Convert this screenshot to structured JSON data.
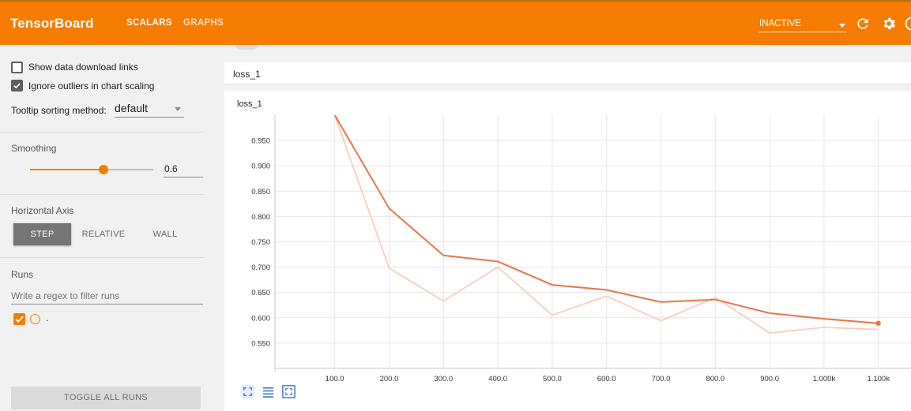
{
  "app": {
    "brand": "TensorBoard",
    "tabs": [
      {
        "label": "SCALARS",
        "active": true
      },
      {
        "label": "GRAPHS",
        "active": false
      }
    ],
    "status_select": "INACTIVE",
    "accent_color": "#f57c00",
    "icons": [
      "refresh-icon",
      "settings-icon",
      "help-icon"
    ]
  },
  "sidebar": {
    "show_download_links": {
      "label": "Show data download links",
      "checked": false
    },
    "ignore_outliers": {
      "label": "Ignore outliers in chart scaling",
      "checked": true
    },
    "tooltip_sorting": {
      "label": "Tooltip sorting method:",
      "value": "default"
    },
    "smoothing": {
      "label": "Smoothing",
      "value": "0.6",
      "level": 0.6
    },
    "horizontal_axis": {
      "label": "Horizontal Axis",
      "options": [
        {
          "label": "STEP",
          "active": true
        },
        {
          "label": "RELATIVE",
          "active": false
        },
        {
          "label": "WALL",
          "active": false
        }
      ]
    },
    "runs": {
      "label": "Runs",
      "filter_placeholder": "Write a regex to filter runs",
      "items": [
        {
          "name": ".",
          "checked": true,
          "color": "#f57c00"
        }
      ]
    },
    "toggle_all": "TOGGLE ALL RUNS"
  },
  "main": {
    "tag_group": "loss_1",
    "card_title": "loss_1",
    "chart_buttons": [
      "fit-domain-icon",
      "toggle-log-scale-icon",
      "expand-chart-icon"
    ]
  },
  "chart_data": {
    "type": "line",
    "title": "loss_1",
    "xlabel": "",
    "ylabel": "",
    "x_ticks": [
      "100.0",
      "200.0",
      "300.0",
      "400.0",
      "500.0",
      "600.0",
      "700.0",
      "800.0",
      "900.0",
      "1.000k",
      "1.100k"
    ],
    "y_ticks": [
      "0.550",
      "0.600",
      "0.650",
      "0.700",
      "0.750",
      "0.800",
      "0.850",
      "0.900",
      "0.950"
    ],
    "xlim": [
      -10,
      1160
    ],
    "ylim": [
      0.5,
      1.0
    ],
    "grid": true,
    "series": [
      {
        "kind": "smoothed",
        "color": "#e8754a",
        "x": [
          100,
          200,
          300,
          400,
          500,
          600,
          700,
          800,
          900,
          1000,
          1100
        ],
        "y": [
          1.0,
          0.816,
          0.723,
          0.711,
          0.665,
          0.655,
          0.631,
          0.636,
          0.609,
          0.598,
          0.589
        ]
      },
      {
        "kind": "raw",
        "color": "#f7cdb8",
        "x": [
          100,
          200,
          300,
          400,
          500,
          600,
          700,
          800,
          900,
          1000,
          1100
        ],
        "y": [
          1.0,
          0.698,
          0.633,
          0.7,
          0.605,
          0.643,
          0.594,
          0.64,
          0.57,
          0.581,
          0.577
        ]
      }
    ]
  }
}
